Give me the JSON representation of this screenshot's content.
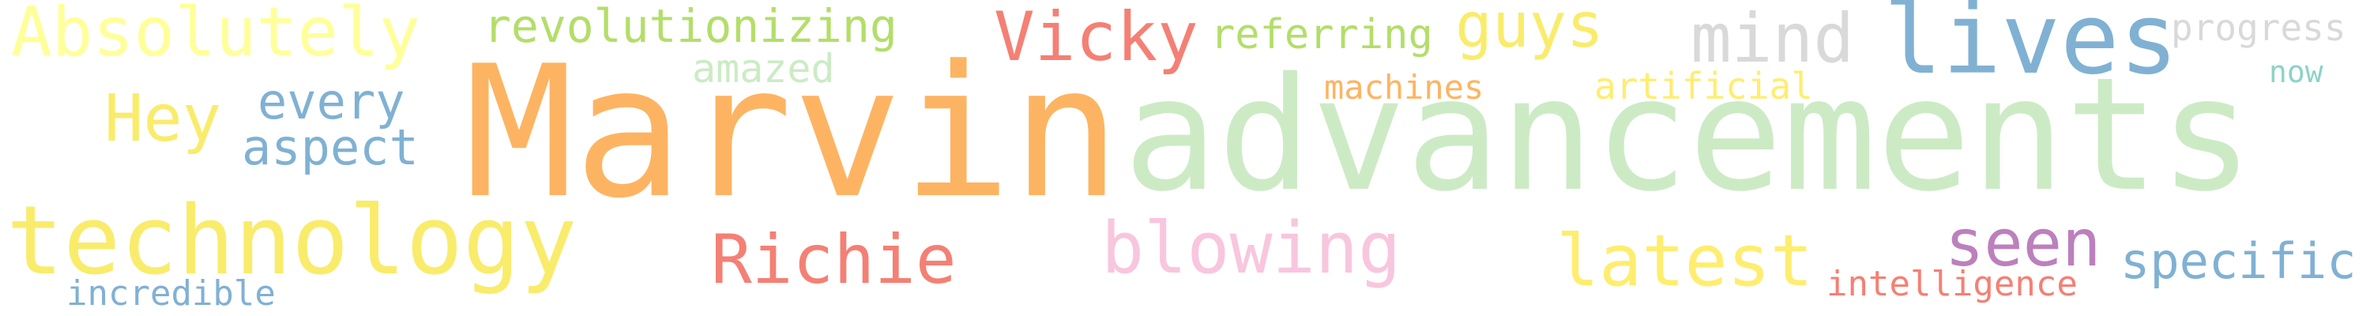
{
  "words": [
    {
      "text": "Absolutely",
      "color": "#ffff99"
    },
    {
      "text": "revolutionizing",
      "color": "#b3de69"
    },
    {
      "text": "Vicky",
      "color": "#f48075"
    },
    {
      "text": "referring",
      "color": "#b3de69"
    },
    {
      "text": "guys",
      "color": "#f9ec6b"
    },
    {
      "text": "mind",
      "color": "#d9d9d9"
    },
    {
      "text": "lives",
      "color": "#80b1d3"
    },
    {
      "text": "progress",
      "color": "#d9d9d9"
    },
    {
      "text": "amazed",
      "color": "#ccebc5"
    },
    {
      "text": "machines",
      "color": "#fdb462"
    },
    {
      "text": "artificial",
      "color": "#ffed6f"
    },
    {
      "text": "now",
      "color": "#8dd3c7"
    },
    {
      "text": "Hey",
      "color": "#f9ec6b"
    },
    {
      "text": "every",
      "color": "#80b1d3"
    },
    {
      "text": "aspect",
      "color": "#80b1d3"
    },
    {
      "text": "Marvin",
      "color": "#fdb462"
    },
    {
      "text": "advancements",
      "color": "#ccebc5"
    },
    {
      "text": "technology",
      "color": "#f9ec6b"
    },
    {
      "text": "Richie",
      "color": "#f48075"
    },
    {
      "text": "blowing",
      "color": "#f8c6de"
    },
    {
      "text": "latest",
      "color": "#ffed6f"
    },
    {
      "text": "seen",
      "color": "#bc80bd"
    },
    {
      "text": "specific",
      "color": "#80b1d3"
    },
    {
      "text": "intelligence",
      "color": "#f48075"
    },
    {
      "text": "incredible",
      "color": "#80b1d3"
    }
  ]
}
